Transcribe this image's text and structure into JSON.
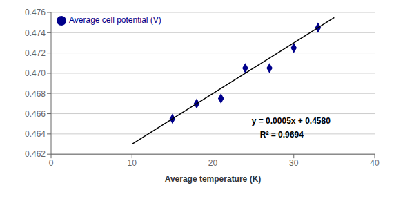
{
  "chart_data": {
    "type": "scatter",
    "xlabel": "Average temperature (K)",
    "xlim": [
      0,
      40
    ],
    "xticks": [
      0,
      10,
      20,
      30,
      40
    ],
    "ylim": [
      0.462,
      0.476
    ],
    "yticks": [
      0.462,
      0.464,
      0.466,
      0.468,
      {
        "value": 0.47,
        "label": "0.470"
      },
      0.472,
      0.474,
      0.476
    ],
    "grid": "y",
    "legend": "upper left",
    "annotations": [
      "y = 0.0005x + 0.4580",
      "R² = 0.9694"
    ],
    "series": [
      {
        "name": "Average cell potential (V)",
        "type": "scatter",
        "color": "#00008B",
        "marker": "diamond",
        "x": [
          15,
          18,
          21,
          24,
          27,
          30,
          33
        ],
        "values": [
          0.4655,
          0.467,
          0.4675,
          0.4705,
          0.4705,
          0.4725,
          0.4745
        ]
      },
      {
        "type": "line",
        "color": "#000000",
        "x": [
          10,
          35
        ],
        "values": [
          0.463,
          0.4755
        ]
      }
    ]
  }
}
